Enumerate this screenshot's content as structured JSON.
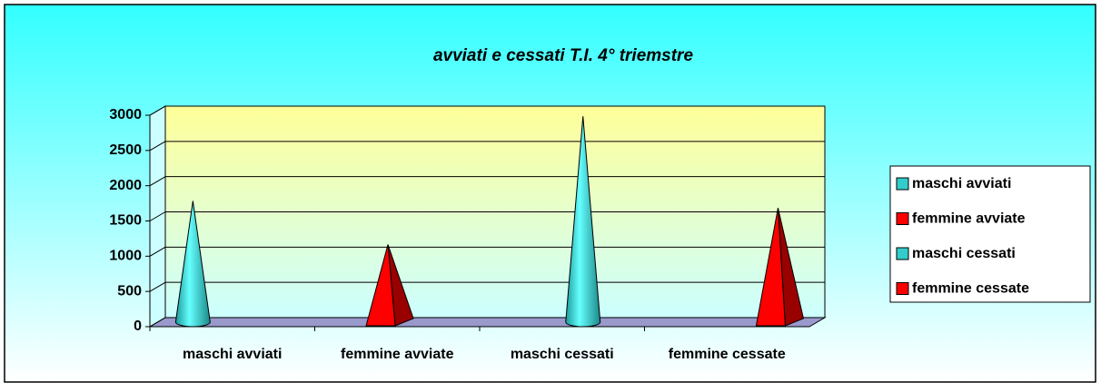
{
  "chart_data": {
    "type": "cone3d",
    "title": "avviati e cessati T.I. 4° triemstre",
    "categories": [
      "maschi avviati",
      "femmine avviate",
      "maschi cessati",
      "femmine cessate"
    ],
    "series": [
      {
        "name": "maschi avviati",
        "color": "#33cccc",
        "values": [
          1720,
          null,
          null,
          null
        ]
      },
      {
        "name": "femmine avviate",
        "color": "#ff0000",
        "values": [
          null,
          1100,
          null,
          null
        ]
      },
      {
        "name": "maschi cessati",
        "color": "#33cccc",
        "values": [
          null,
          null,
          2920,
          null
        ]
      },
      {
        "name": "femmine cessate",
        "color": "#ff0000",
        "values": [
          null,
          null,
          null,
          1620
        ]
      }
    ],
    "ylim": [
      0,
      3000
    ],
    "yticks": [
      0,
      500,
      1000,
      1500,
      2000,
      2500,
      3000
    ],
    "grid": true,
    "legend": "right"
  }
}
